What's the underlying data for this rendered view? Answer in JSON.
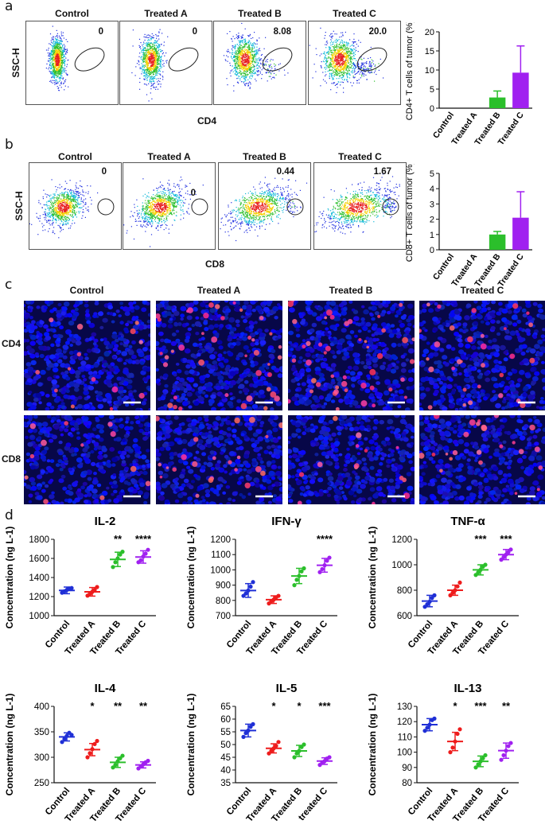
{
  "panels": {
    "a": "a",
    "b": "b",
    "c": "c",
    "d": "d"
  },
  "groups": [
    "Control",
    "Treated A",
    "Treated B",
    "Treated C"
  ],
  "flow": {
    "a": {
      "yaxis": "SSC-H",
      "xaxis": "CD4",
      "gate_values": [
        "0",
        "0",
        "8.08",
        "20.0"
      ]
    },
    "b": {
      "yaxis": "SSC-H",
      "xaxis": "CD8",
      "gate_values": [
        "0",
        "0",
        "0.44",
        "1.67"
      ]
    }
  },
  "micro": {
    "rows": [
      "CD4",
      "CD8"
    ]
  },
  "colors": {
    "control": "#1f2fd6",
    "treated_a": "#ee1c1c",
    "treated_b": "#2bbf2b",
    "treated_c": "#a020f0",
    "nuclei": "#1018c8",
    "micro_bg": "#070748"
  },
  "chart_data": [
    {
      "id": "a-bar",
      "type": "bar",
      "categories": [
        "Control",
        "Treated A",
        "Treated B",
        "Treated C"
      ],
      "values": [
        0,
        0,
        2.8,
        9.3
      ],
      "errors": [
        0,
        0,
        1.7,
        7.0
      ],
      "ylabel": "CD4+ T cells of tumor (%)",
      "ylim": [
        0,
        20
      ],
      "yticks": [
        "0",
        "5",
        "10",
        "15",
        "20"
      ],
      "yticks_num": [
        0,
        5,
        10,
        15,
        20
      ]
    },
    {
      "id": "b-bar",
      "type": "bar",
      "categories": [
        "Control",
        "Treated A",
        "Treated B",
        "Treated C"
      ],
      "values": [
        0,
        0,
        1.0,
        2.1
      ],
      "errors": [
        0,
        0,
        0.2,
        1.7
      ],
      "ylabel": "CD8+ T cells of tumor (%)",
      "ylim": [
        0,
        5
      ],
      "yticks": [
        "0",
        "1",
        "2",
        "3",
        "4",
        "5"
      ],
      "yticks_num": [
        0,
        1,
        2,
        3,
        4,
        5
      ]
    },
    {
      "id": "il2",
      "type": "scatter",
      "title": "IL-2",
      "ylabel": "Concentration (ng L-1)",
      "ylim": [
        1000,
        1800
      ],
      "yticks": [
        "1000",
        "1200",
        "1400",
        "1600",
        "1800"
      ],
      "yticks_num": [
        1000,
        1200,
        1400,
        1600,
        1800
      ],
      "categories": [
        "Control",
        "Treated A",
        "Treated B",
        "Treated C"
      ],
      "means": [
        1265,
        1250,
        1590,
        1615
      ],
      "sds": [
        35,
        45,
        75,
        65
      ],
      "points": [
        [
          1240,
          1255,
          1270,
          1285,
          1290
        ],
        [
          1210,
          1230,
          1250,
          1270,
          1300
        ],
        [
          1510,
          1560,
          1600,
          1640,
          1670
        ],
        [
          1560,
          1580,
          1620,
          1650,
          1690
        ]
      ],
      "stars": [
        "",
        "",
        "**",
        "****"
      ]
    },
    {
      "id": "ifng",
      "type": "scatter",
      "title": "IFN-γ",
      "ylabel": "Concentration (ng L-1)",
      "ylim": [
        700,
        1200
      ],
      "yticks": [
        "700",
        "800",
        "900",
        "1000",
        "1100",
        "1200"
      ],
      "yticks_num": [
        700,
        800,
        900,
        1000,
        1100,
        1200
      ],
      "categories": [
        "Control",
        "Treated A",
        "Treated B",
        "Treated C"
      ],
      "means": [
        865,
        805,
        960,
        1030
      ],
      "sds": [
        45,
        25,
        50,
        45
      ],
      "points": [
        [
          830,
          845,
          865,
          890,
          920
        ],
        [
          780,
          795,
          805,
          820,
          830
        ],
        [
          900,
          935,
          960,
          990,
          1010
        ],
        [
          985,
          1005,
          1030,
          1060,
          1080
        ]
      ],
      "stars": [
        "",
        "",
        "",
        "****"
      ]
    },
    {
      "id": "tnfa",
      "type": "scatter",
      "title": "TNF-α",
      "ylabel": "Concentration (ng L-1)",
      "ylim": [
        600,
        1200
      ],
      "yticks": [
        "600",
        "800",
        "1000",
        "1200"
      ],
      "yticks_num": [
        600,
        800,
        1000,
        1200
      ],
      "categories": [
        "Control",
        "Treated A",
        "Treated B",
        "Treated C"
      ],
      "means": [
        715,
        800,
        960,
        1080
      ],
      "sds": [
        45,
        40,
        40,
        40
      ],
      "points": [
        [
          670,
          690,
          710,
          740,
          760
        ],
        [
          760,
          780,
          800,
          830,
          860
        ],
        [
          920,
          940,
          960,
          985,
          1000
        ],
        [
          1040,
          1060,
          1080,
          1100,
          1120
        ]
      ],
      "stars": [
        "",
        "",
        "***",
        "***"
      ]
    },
    {
      "id": "il4",
      "type": "scatter",
      "title": "IL-4",
      "ylabel": "Concentration  (ng L-1)",
      "ylim": [
        250,
        400
      ],
      "yticks": [
        "250",
        "300",
        "350",
        "400"
      ],
      "yticks_num": [
        250,
        300,
        350,
        400
      ],
      "categories": [
        "Control",
        "Treated A",
        "Treated B",
        "Treated C"
      ],
      "means": [
        340,
        315,
        290,
        285
      ],
      "sds": [
        8,
        12,
        10,
        6
      ],
      "points": [
        [
          330,
          336,
          342,
          348,
          344
        ],
        [
          300,
          308,
          316,
          326,
          332
        ],
        [
          280,
          285,
          292,
          298,
          303
        ],
        [
          278,
          282,
          286,
          290,
          293
        ]
      ],
      "stars": [
        "",
        "*",
        "**",
        "**"
      ]
    },
    {
      "id": "il5",
      "type": "scatter",
      "title": "IL-5",
      "ylabel": "Concentration (ng L-1)",
      "ylim": [
        35,
        65
      ],
      "yticks": [
        "35",
        "40",
        "45",
        "50",
        "55",
        "60",
        "65"
      ],
      "yticks_num": [
        35,
        40,
        45,
        50,
        55,
        60,
        65
      ],
      "categories": [
        "Control",
        "Treated A",
        "Treated B",
        "treated C"
      ],
      "means": [
        55.5,
        48.5,
        47.5,
        43.5
      ],
      "sds": [
        2.5,
        1.8,
        2.2,
        1.3
      ],
      "points": [
        [
          53,
          54.5,
          55.5,
          57,
          58
        ],
        [
          46.5,
          47.5,
          48.5,
          49.5,
          51
        ],
        [
          45,
          46.5,
          47.5,
          49,
          50
        ],
        [
          42,
          43,
          43.5,
          44.5,
          45
        ]
      ],
      "stars": [
        "",
        "*",
        "*",
        "***"
      ]
    },
    {
      "id": "il13",
      "type": "scatter",
      "title": "IL-13",
      "ylabel": "Concentration (ng L-1)",
      "ylim": [
        80,
        130
      ],
      "yticks": [
        "80",
        "90",
        "100",
        "110",
        "120",
        "130"
      ],
      "yticks_num": [
        80,
        90,
        100,
        110,
        120,
        130
      ],
      "categories": [
        "Control",
        "Treated A",
        "Treated B",
        "Treated C"
      ],
      "means": [
        118,
        107,
        94,
        101
      ],
      "sds": [
        4,
        6,
        3.5,
        5
      ],
      "points": [
        [
          114,
          116,
          118,
          121,
          122
        ],
        [
          100,
          103,
          107,
          112,
          115
        ],
        [
          90,
          92,
          94,
          96,
          98
        ],
        [
          95,
          98,
          101,
          104,
          106
        ]
      ],
      "stars": [
        "",
        "*",
        "***",
        "**"
      ]
    }
  ]
}
